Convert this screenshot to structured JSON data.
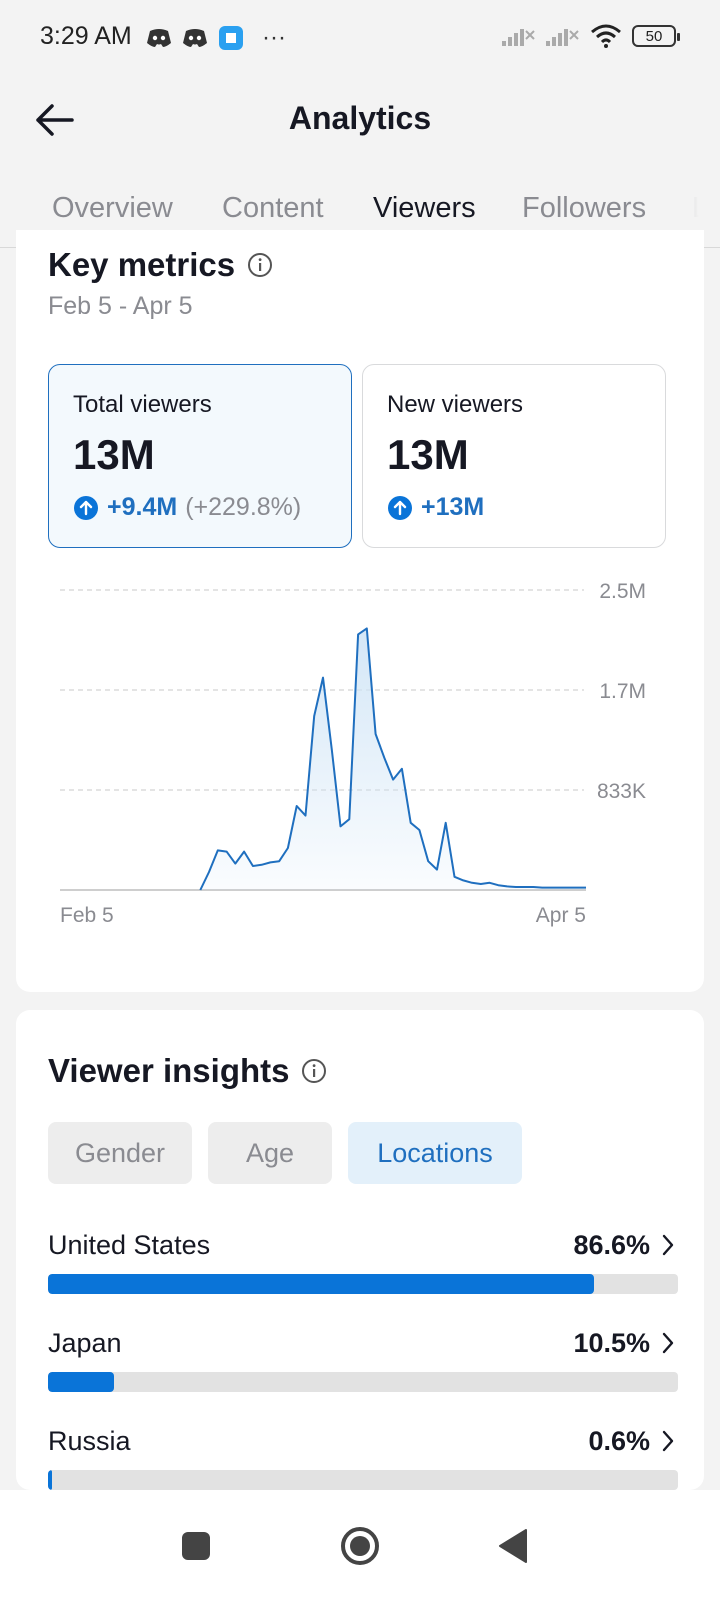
{
  "status_bar": {
    "time": "3:29 AM",
    "battery": "50",
    "more": "···"
  },
  "header": {
    "title": "Analytics"
  },
  "tabs": [
    {
      "label": "Overview"
    },
    {
      "label": "Content"
    },
    {
      "label": "Viewers"
    },
    {
      "label": "Followers"
    },
    {
      "label": "L"
    }
  ],
  "key_metrics": {
    "title": "Key metrics",
    "date_range": "Feb 5 - Apr 5",
    "total_viewers": {
      "label": "Total viewers",
      "value": "13M",
      "change": "+9.4M",
      "change_pct": "(+229.8%)"
    },
    "new_viewers": {
      "label": "New viewers",
      "value": "13M",
      "change": "+13M"
    }
  },
  "chart_data": {
    "type": "area",
    "title": "",
    "x_start_label": "Feb 5",
    "x_end_label": "Apr 5",
    "y_tick_labels": [
      "2.5M",
      "1.7M",
      "833K"
    ],
    "y_tick_values": [
      2500000,
      1666667,
      833333
    ],
    "ylim": [
      0,
      2500000
    ],
    "grid": true,
    "x": [
      0,
      1,
      2,
      3,
      4,
      5,
      6,
      7,
      8,
      9,
      10,
      11,
      12,
      13,
      14,
      15,
      16,
      17,
      18,
      19,
      20,
      21,
      22,
      23,
      24,
      25,
      26,
      27,
      28,
      29,
      30,
      31,
      32,
      33,
      34,
      35,
      36,
      37,
      38,
      39,
      40,
      41,
      42,
      43,
      44,
      45,
      46,
      47,
      48,
      49,
      50,
      51,
      52,
      53,
      54,
      55,
      56,
      57,
      58,
      59,
      60
    ],
    "values": [
      0,
      0,
      0,
      0,
      0,
      0,
      0,
      0,
      0,
      0,
      0,
      0,
      0,
      0,
      0,
      0,
      0,
      150000,
      330000,
      320000,
      220000,
      320000,
      200000,
      210000,
      230000,
      240000,
      350000,
      700000,
      620000,
      1450000,
      1770000,
      1170000,
      530000,
      590000,
      2130000,
      2180000,
      1300000,
      1100000,
      920000,
      1010000,
      560000,
      500000,
      240000,
      170000,
      560000,
      110000,
      80000,
      60000,
      50000,
      60000,
      40000,
      30000,
      25000,
      25000,
      25000,
      20000,
      20000,
      20000,
      20000,
      20000,
      20000
    ]
  },
  "viewer_insights": {
    "title": "Viewer insights",
    "filters": [
      {
        "label": "Gender"
      },
      {
        "label": "Age"
      },
      {
        "label": "Locations"
      }
    ],
    "locations": [
      {
        "name": "United States",
        "pct": "86.6%",
        "value": 0.866
      },
      {
        "name": "Japan",
        "pct": "10.5%",
        "value": 0.105
      },
      {
        "name": "Russia",
        "pct": "0.6%",
        "value": 0.006
      }
    ]
  },
  "colors": {
    "accent": "#0a74d8",
    "line": "#1f6fbf",
    "text": "#161823",
    "muted": "#8a8b91"
  }
}
